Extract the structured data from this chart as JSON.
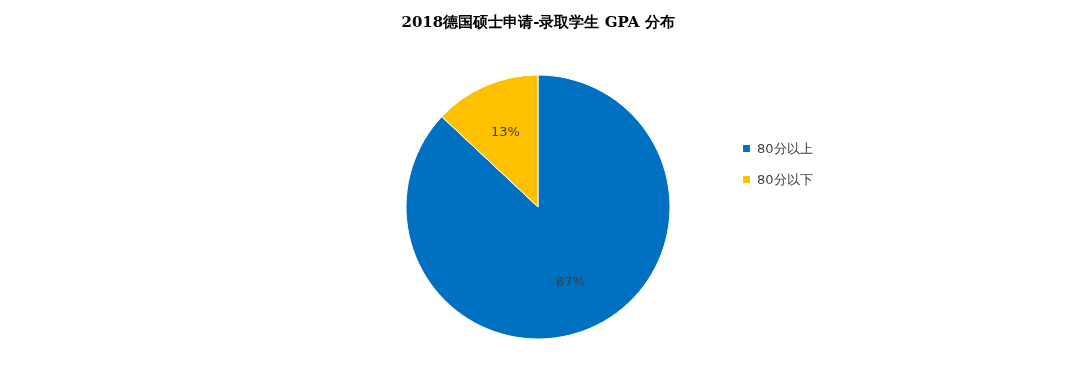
{
  "chart_data": {
    "type": "pie",
    "title": "2018德国硕士申请-录取学生 GPA 分布",
    "categories": [
      "80分以上",
      "80分以下"
    ],
    "values": [
      87,
      13
    ],
    "colors": [
      "#0070c0",
      "#ffc000"
    ],
    "value_labels": [
      "87%",
      "13%"
    ],
    "legend": "right"
  }
}
